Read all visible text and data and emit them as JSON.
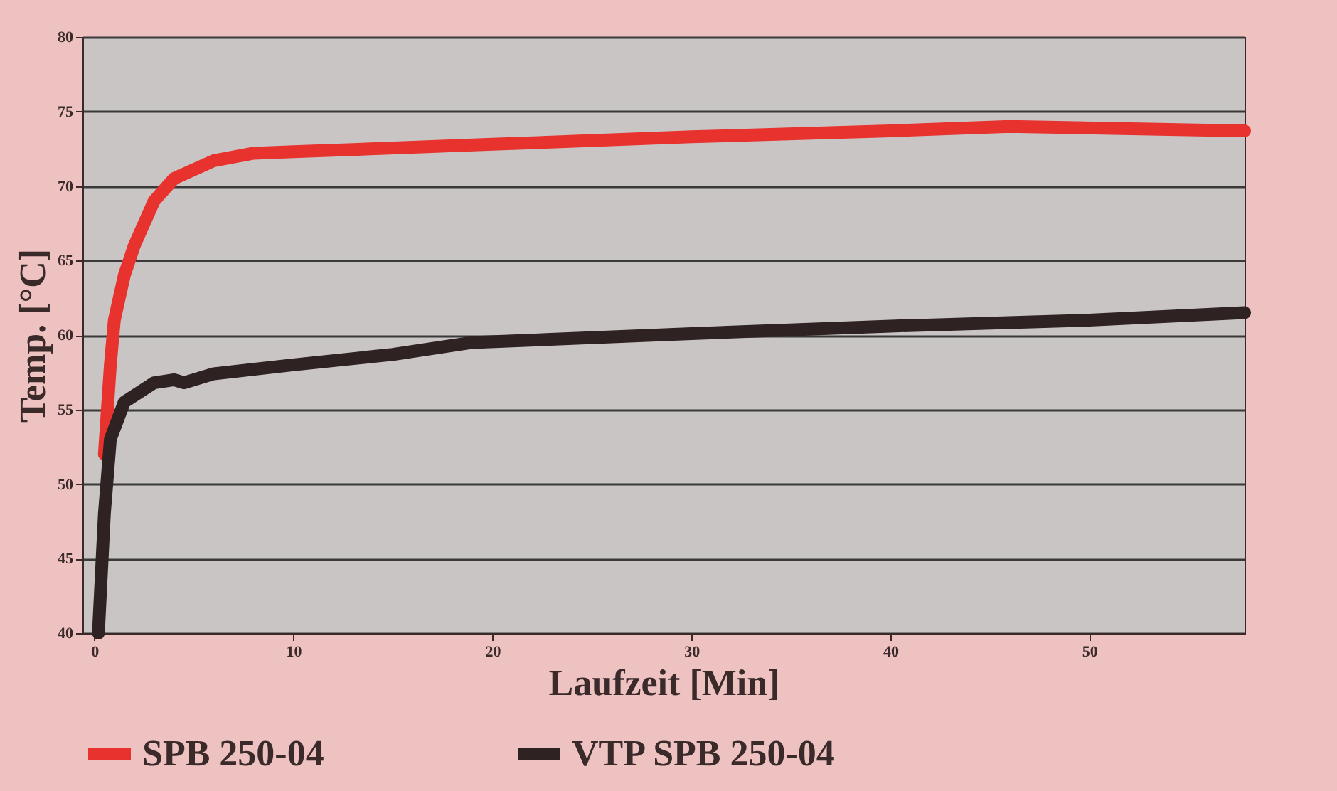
{
  "chart_data": {
    "type": "line",
    "xlabel": "Laufzeit [Min]",
    "ylabel": "Temp. [°C]",
    "xlim": [
      -0.6,
      57.8
    ],
    "ylim": [
      40,
      80
    ],
    "xticks": [
      0,
      10,
      20,
      30,
      40,
      50
    ],
    "yticks": [
      40,
      45,
      50,
      55,
      60,
      65,
      70,
      75,
      80
    ],
    "grid": "y",
    "legend": "bottom",
    "line_style": "solid",
    "series": [
      {
        "name": "SPB 250-04",
        "color": "#e8322e",
        "x": [
          0.5,
          0.8,
          1,
          1.5,
          2,
          3,
          4,
          6,
          8,
          10,
          20,
          30,
          40,
          46,
          57.8
        ],
        "values": [
          52,
          58,
          61,
          64,
          66,
          69,
          70.5,
          71.7,
          72.2,
          72.3,
          72.8,
          73.3,
          73.7,
          74,
          73.7
        ]
      },
      {
        "name": "VTP SPB 250-04",
        "color": "#2e2222",
        "x": [
          0.2,
          0.5,
          0.8,
          1.5,
          3,
          4,
          4.5,
          6,
          10,
          15,
          19,
          30,
          40,
          50,
          57.8
        ],
        "values": [
          40,
          48,
          53,
          55.5,
          56.8,
          57,
          56.8,
          57.4,
          58,
          58.7,
          59.5,
          60.1,
          60.6,
          61,
          61.5
        ]
      }
    ]
  }
}
